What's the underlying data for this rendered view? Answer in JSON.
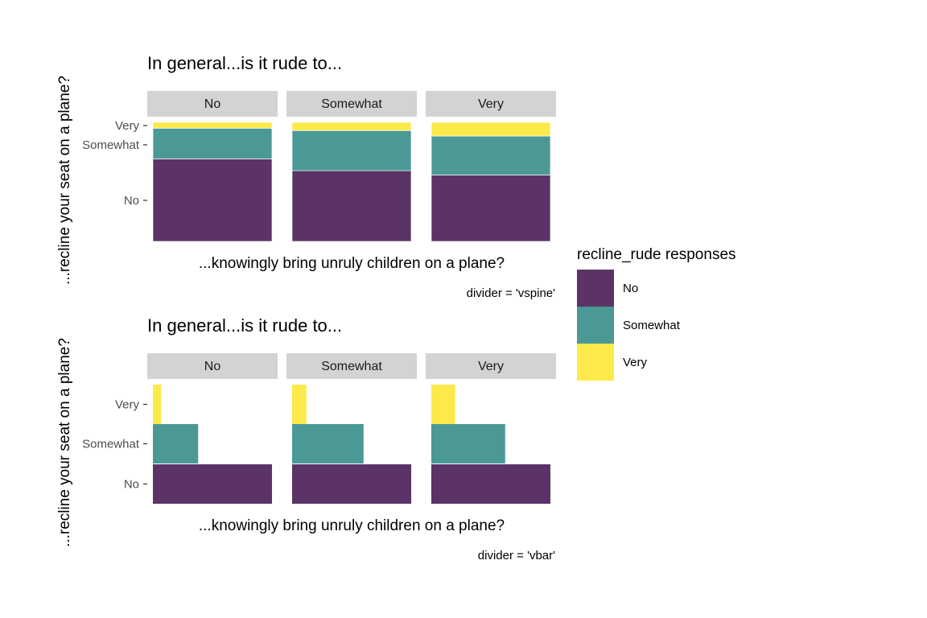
{
  "chart_data": [
    {
      "type": "bar",
      "divider": "vspine",
      "title": "In general...is it rude to...",
      "xlabel": "...knowingly bring unruly children on a plane?",
      "ylabel": "...recline your seat on a plane?",
      "caption": "divider = 'vspine'",
      "facets": [
        "No",
        "Somewhat",
        "Very"
      ],
      "y_categories": [
        "No",
        "Somewhat",
        "Very"
      ],
      "series": [
        {
          "name": "No",
          "values": [
            0.7,
            0.6,
            0.58
          ]
        },
        {
          "name": "Somewhat",
          "values": [
            0.26,
            0.34,
            0.34
          ]
        },
        {
          "name": "Very",
          "values": [
            0.05,
            0.07,
            0.12
          ]
        }
      ]
    },
    {
      "type": "bar",
      "divider": "vbar",
      "title": "In general...is it rude to...",
      "xlabel": "...knowingly bring unruly children on a plane?",
      "ylabel": "...recline your seat on a plane?",
      "caption": "divider = 'vbar'",
      "facets": [
        "No",
        "Somewhat",
        "Very"
      ],
      "y_categories": [
        "No",
        "Somewhat",
        "Very"
      ],
      "series": [
        {
          "name": "No",
          "values": [
            1.0,
            1.0,
            1.0
          ]
        },
        {
          "name": "Somewhat",
          "values": [
            0.38,
            0.6,
            0.62
          ]
        },
        {
          "name": "Very",
          "values": [
            0.07,
            0.12,
            0.2
          ]
        }
      ]
    }
  ],
  "legend": {
    "title": "recline_rude responses",
    "items": [
      {
        "label": "No",
        "color": "#5b3366"
      },
      {
        "label": "Somewhat",
        "color": "#4a9994"
      },
      {
        "label": "Very",
        "color": "#fde94a"
      }
    ]
  },
  "colors": {
    "No": "#5b3366",
    "Somewhat": "#4a9994",
    "Very": "#fde94a",
    "strip": "#d3d3d3"
  }
}
